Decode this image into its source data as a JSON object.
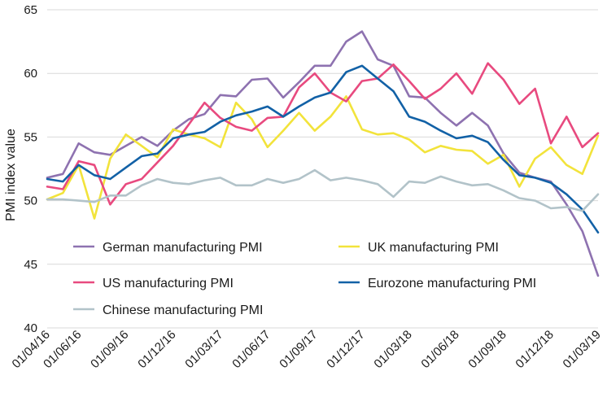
{
  "chart_data": {
    "type": "line",
    "title": "",
    "xlabel": "",
    "ylabel": "PMI index value",
    "ylim": [
      40,
      65
    ],
    "yticks": [
      40,
      45,
      50,
      55,
      60,
      65
    ],
    "grid": "horizontal",
    "legend_placement": "bottom-left-inside",
    "x": [
      "01/04/16",
      "01/05/16",
      "01/06/16",
      "01/07/16",
      "01/08/16",
      "01/09/16",
      "01/10/16",
      "01/11/16",
      "01/12/16",
      "01/01/17",
      "01/02/17",
      "01/03/17",
      "01/04/17",
      "01/05/17",
      "01/06/17",
      "01/07/17",
      "01/08/17",
      "01/09/17",
      "01/10/17",
      "01/11/17",
      "01/12/17",
      "01/01/18",
      "01/02/18",
      "01/03/18",
      "01/04/18",
      "01/05/18",
      "01/06/18",
      "01/07/18",
      "01/08/18",
      "01/09/18",
      "01/10/18",
      "01/11/18",
      "01/12/18",
      "01/01/19",
      "01/02/19",
      "01/03/19"
    ],
    "xtick_labels": [
      "01/04/16",
      "01/06/16",
      "01/09/16",
      "01/12/16",
      "01/03/17",
      "01/06/17",
      "01/09/17",
      "01/12/17",
      "01/03/18",
      "01/06/18",
      "01/09/18",
      "01/12/18",
      "01/03/19"
    ],
    "series": [
      {
        "name": "German manufacturing PMI",
        "color": "#8e72b0",
        "values": [
          51.8,
          52.1,
          54.5,
          53.8,
          53.6,
          54.3,
          55.0,
          54.3,
          55.5,
          56.4,
          56.8,
          58.3,
          58.2,
          59.5,
          59.6,
          58.1,
          59.3,
          60.6,
          60.6,
          62.5,
          63.3,
          61.1,
          60.6,
          58.2,
          58.1,
          56.9,
          55.9,
          56.9,
          55.9,
          53.7,
          52.2,
          51.8,
          51.5,
          49.7,
          47.6,
          44.1
        ]
      },
      {
        "name": "UK manufacturing PMI",
        "color": "#f2e33b",
        "values": [
          50.1,
          50.6,
          52.8,
          48.6,
          53.3,
          55.2,
          54.3,
          53.4,
          55.6,
          55.2,
          54.9,
          54.2,
          57.7,
          56.4,
          54.2,
          55.5,
          56.9,
          55.5,
          56.6,
          58.2,
          55.6,
          55.2,
          55.3,
          54.8,
          53.8,
          54.3,
          54.0,
          53.9,
          52.9,
          53.6,
          51.1,
          53.3,
          54.2,
          52.8,
          52.1,
          55.1
        ]
      },
      {
        "name": "US manufacturing PMI",
        "color": "#e84a7f",
        "values": [
          51.1,
          50.9,
          53.1,
          52.8,
          49.7,
          51.3,
          51.7,
          53.0,
          54.3,
          56.0,
          57.7,
          56.5,
          55.8,
          55.5,
          56.5,
          56.6,
          58.9,
          60.0,
          58.5,
          57.8,
          59.4,
          59.6,
          60.7,
          59.4,
          58.0,
          58.8,
          60.0,
          58.4,
          60.8,
          59.5,
          57.6,
          58.8,
          54.5,
          56.6,
          54.2,
          55.3
        ]
      },
      {
        "name": "Eurozone manufacturing PMI",
        "color": "#1261a6",
        "values": [
          51.7,
          51.5,
          52.8,
          52.0,
          51.7,
          52.6,
          53.5,
          53.7,
          54.9,
          55.2,
          55.4,
          56.2,
          56.7,
          57.0,
          57.4,
          56.6,
          57.4,
          58.1,
          58.5,
          60.1,
          60.6,
          59.6,
          58.6,
          56.6,
          56.2,
          55.5,
          54.9,
          55.1,
          54.6,
          53.2,
          52.0,
          51.8,
          51.4,
          50.5,
          49.3,
          47.5
        ]
      },
      {
        "name": "Chinese manufacturing PMI",
        "color": "#b2c3c9",
        "values": [
          50.1,
          50.1,
          50.0,
          49.9,
          50.4,
          50.4,
          51.2,
          51.7,
          51.4,
          51.3,
          51.6,
          51.8,
          51.2,
          51.2,
          51.7,
          51.4,
          51.7,
          52.4,
          51.6,
          51.8,
          51.6,
          51.3,
          50.3,
          51.5,
          51.4,
          51.9,
          51.5,
          51.2,
          51.3,
          50.8,
          50.2,
          50.0,
          49.4,
          49.5,
          49.2,
          50.5
        ]
      }
    ]
  }
}
